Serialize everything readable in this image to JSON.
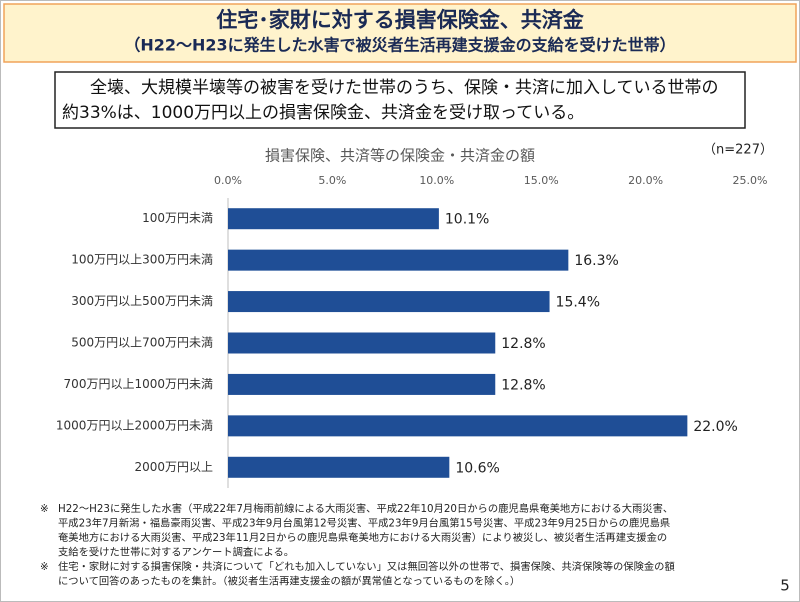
{
  "slide": {
    "title": "住宅･家財に対する損害保険金、共済金",
    "subtitle": "（H22～H23に発生した水害で被災者生活再建支援金の支給を受けた世帯）",
    "summary": [
      "全壊、大規模半壊等の被害を受けた世帯のうち、保険・共済に加入している世帯の",
      "約33%は、1000万円以上の損害保険金、共済金を受け取っている。"
    ],
    "notes": [
      {
        "mark": "※",
        "lines": [
          "H22～H23に発生した水害（平成22年7月梅雨前線による大雨災害、平成22年10月20日からの鹿児島県奄美地方における大雨災害、",
          "平成23年7月新潟・福島豪雨災害、平成23年9月台風第12号災害、平成23年9月台風第15号災害、平成23年9月25日からの鹿児島県",
          "奄美地方における大雨災害、平成23年11月2日からの鹿児島県奄美地方における大雨災害）により被災し、被災者生活再建支援金の",
          "支給を受けた世帯に対するアンケート調査による。"
        ]
      },
      {
        "mark": "※",
        "lines": [
          "住宅・家財に対する損害保険・共済について「どれも加入していない」又は無回答以外の世帯で、損害保険、共済保険等の保険金の額",
          "について回答のあったものを集計。（被災者生活再建支援金の額が異常値となっているものを除く。）"
        ]
      }
    ],
    "page": "5"
  },
  "chart_data": {
    "type": "bar",
    "orientation": "horizontal",
    "title": "損害保険、共済等の保険金・共済金の額",
    "annotation": "（n=227）",
    "categories": [
      "100万円未満",
      "100万円以上300万円未満",
      "300万円以上500万円未満",
      "500万円以上700万円未満",
      "700万円以上1000万円未満",
      "1000万円以上2000万円未満",
      "2000万円以上"
    ],
    "values": [
      10.1,
      16.3,
      15.4,
      12.8,
      12.8,
      22.0,
      10.6
    ],
    "value_labels": [
      "10.1%",
      "16.3%",
      "15.4%",
      "12.8%",
      "12.8%",
      "22.0%",
      "10.6%"
    ],
    "color": "#1f4e96",
    "xlim": [
      0,
      25
    ],
    "xticks": [
      {
        "value": 0,
        "label": "0.0%"
      },
      {
        "value": 5,
        "label": "5.0%"
      },
      {
        "value": 10,
        "label": "10.0%"
      },
      {
        "value": 15,
        "label": "15.0%"
      },
      {
        "value": 20,
        "label": "20.0%"
      },
      {
        "value": 25,
        "label": "25.0%"
      }
    ],
    "grid": false
  }
}
